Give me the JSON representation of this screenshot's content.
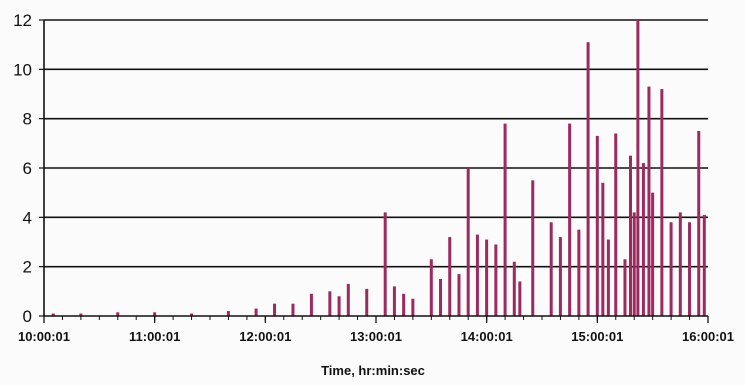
{
  "chart_data": {
    "type": "bar",
    "xlabel": "Time, hr:min:sec",
    "ylabel": "",
    "title": "",
    "ylim": [
      0,
      12
    ],
    "xlim": [
      "10:00:01",
      "16:00:01"
    ],
    "yticks": [
      "0",
      "2",
      "4",
      "6",
      "8",
      "10",
      "12"
    ],
    "xticks": [
      "10:00:01",
      "11:00:01",
      "12:00:01",
      "13:00:01",
      "14:00:01",
      "15:00:01",
      "16:00:01"
    ],
    "grid": "horizontal",
    "colors": {
      "bars": "#9b2a5e",
      "grid": "#111111",
      "axis": "#111111"
    },
    "series": [
      {
        "x": [
          "10:05:00",
          "10:20:00",
          "10:40:00",
          "11:00:00",
          "11:20:00",
          "11:40:00",
          "11:55:00",
          "12:05:00",
          "12:15:00",
          "12:25:00",
          "12:35:00",
          "12:40:00",
          "12:45:00",
          "12:55:00",
          "13:05:00",
          "13:10:00",
          "13:15:00",
          "13:20:00",
          "13:30:00",
          "13:35:00",
          "13:40:00",
          "13:45:00",
          "13:50:00",
          "13:55:00",
          "14:00:00",
          "14:05:00",
          "14:10:00",
          "14:15:00",
          "14:18:00",
          "14:25:00",
          "14:35:00",
          "14:40:00",
          "14:45:00",
          "14:50:00",
          "14:55:00",
          "15:00:00",
          "15:03:00",
          "15:06:00",
          "15:10:00",
          "15:15:00",
          "15:18:00",
          "15:20:00",
          "15:22:00",
          "15:25:00",
          "15:28:00",
          "15:30:00",
          "15:35:00",
          "15:40:00",
          "15:45:00",
          "15:50:00",
          "15:55:00",
          "15:58:00"
        ],
        "values": [
          0.1,
          0.1,
          0.15,
          0.15,
          0.1,
          0.2,
          0.3,
          0.5,
          0.5,
          0.9,
          1.0,
          0.8,
          1.3,
          1.1,
          4.2,
          1.2,
          0.9,
          0.7,
          2.3,
          1.5,
          3.2,
          1.7,
          6.0,
          3.3,
          3.1,
          2.9,
          7.8,
          2.2,
          1.4,
          5.5,
          3.8,
          3.2,
          7.8,
          3.5,
          11.1,
          7.3,
          5.4,
          3.1,
          7.4,
          2.3,
          6.5,
          4.2,
          12.0,
          6.2,
          9.3,
          5.0,
          9.2,
          3.8,
          4.2,
          3.8,
          7.5,
          4.1
        ]
      }
    ]
  }
}
